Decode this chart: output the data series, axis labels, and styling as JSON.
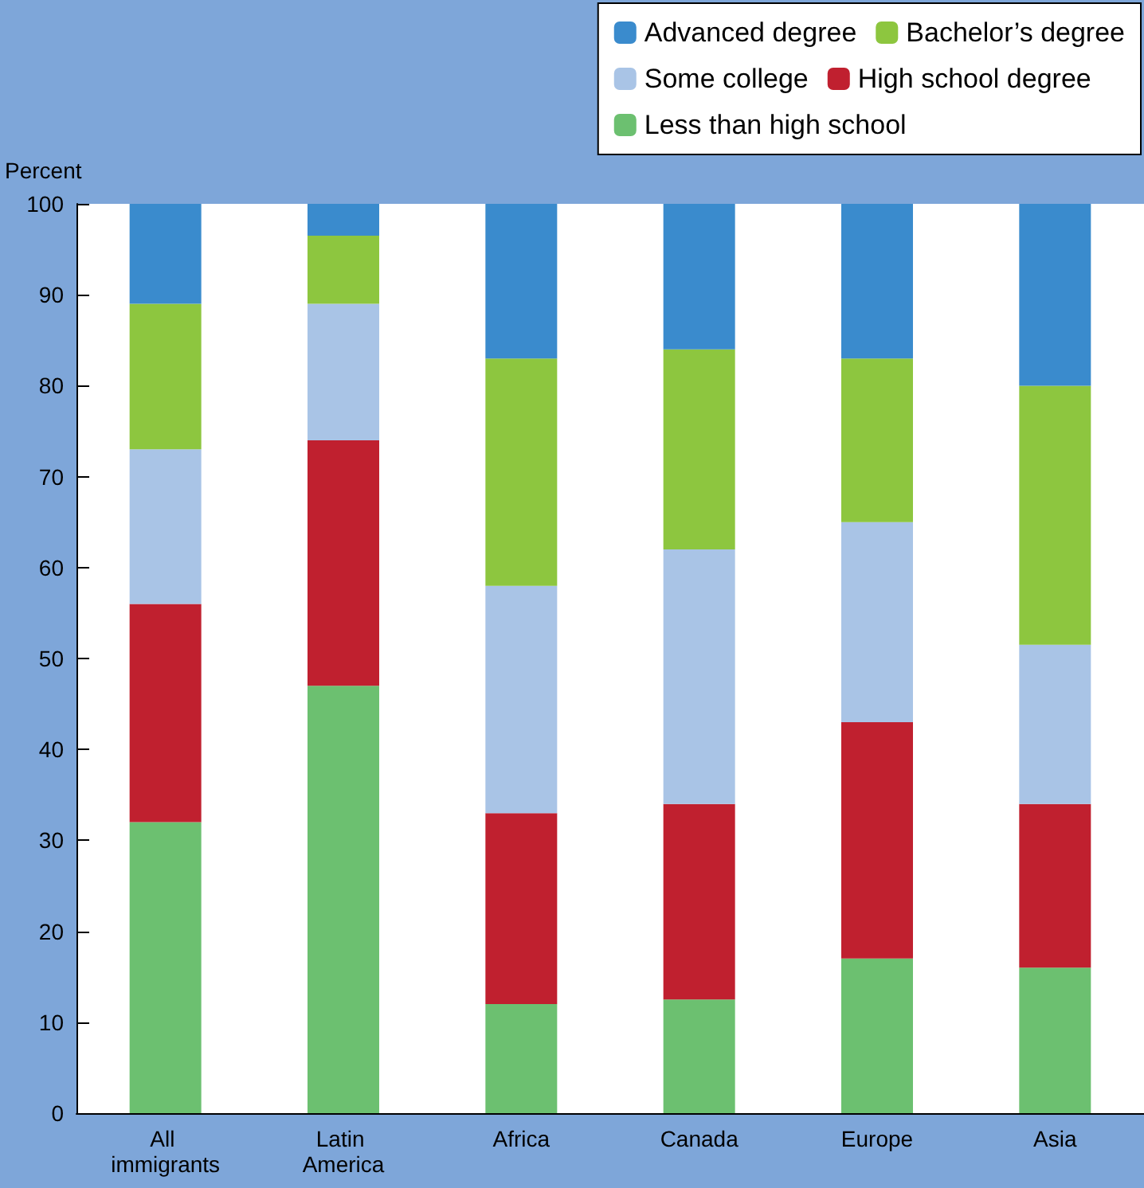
{
  "chart_data": {
    "type": "bar",
    "stacked": true,
    "ylabel": "Percent",
    "categories": [
      "All immigrants",
      "Latin America",
      "Africa",
      "Canada",
      "Europe",
      "Asia"
    ],
    "series": [
      {
        "name": "Less than high school",
        "color": "#6cc070",
        "values": [
          32,
          47,
          12,
          12.5,
          17,
          16
        ]
      },
      {
        "name": "High school degree",
        "color": "#c0202f",
        "values": [
          24,
          27,
          21,
          21.5,
          26,
          18
        ]
      },
      {
        "name": "Some college",
        "color": "#a9c4e6",
        "values": [
          17,
          15,
          25,
          28,
          22,
          17.5
        ]
      },
      {
        "name": "Bachelor’s degree",
        "color": "#8dc63f",
        "values": [
          16,
          7.5,
          25,
          22,
          18,
          28.5
        ]
      },
      {
        "name": "Advanced degree",
        "color": "#3a8bcd",
        "values": [
          11,
          3.5,
          17,
          16,
          17,
          20
        ]
      }
    ],
    "ylim": [
      0,
      100
    ],
    "yticks": [
      0,
      10,
      20,
      30,
      40,
      50,
      60,
      70,
      80,
      90,
      100
    ],
    "grid": false,
    "legend": "top right"
  }
}
